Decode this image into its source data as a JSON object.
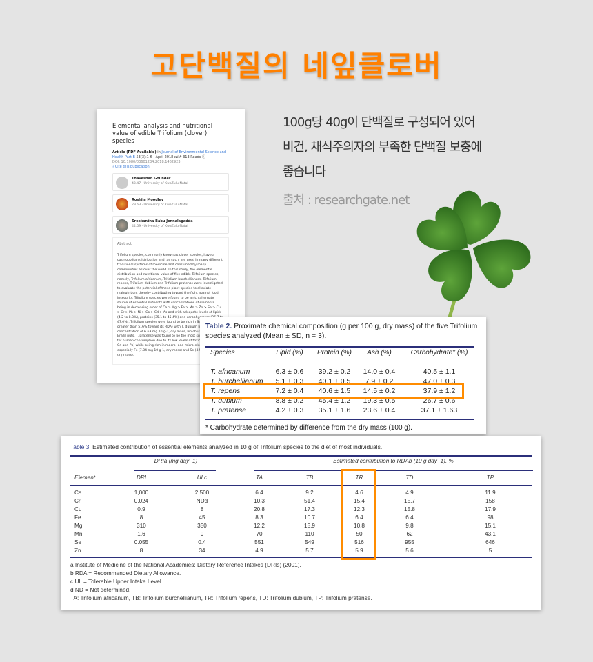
{
  "title": "고단백질의 네잎클로버",
  "description": [
    "100g당 40g이 단백질로 구성되어 있어",
    "비건, 채식주의자의 부족한 단백질 보충에",
    "좋습니다"
  ],
  "source": "출처 : researchgate.net",
  "colors": {
    "accent": "#ff8000",
    "highlight": "#ff8c00",
    "table_rule": "#2b2f7a",
    "background": "#e4e4e4"
  },
  "paper": {
    "title": "Elemental analysis and nutritional value of edible Trifolium (clover) species",
    "article_type": "Article (PDF Available)",
    "in": "in",
    "journal": "Journal of Environmental Science and Health Part B",
    "issue": "53(3):1-6 · April 2018",
    "with": "with",
    "reads": "313 Reads",
    "doi": "DOI: 10.1080/03601234.2018.1462923",
    "cite": "Cite this publication",
    "authors": [
      {
        "name": "Thaveshan Gounder",
        "affiliation": "43.47 · University of KwaZulu-Natal"
      },
      {
        "name": "Roshila Moodley",
        "affiliation": "29.63 · University of KwaZulu-Natal"
      },
      {
        "name": "Sreekantha Babu Jonnalagadda",
        "affiliation": "44.59 · University of KwaZulu-Natal"
      }
    ],
    "abstract_label": "Abstract",
    "abstract": "Trifolium species, commonly known as clover species, have a cosmopolitan distribution and, as such, are used in many different traditional systems of medicine and consumed by many communities all over the world. In this study, the elemental distribution and nutritional value of five edible Trifolium species, namely, Trifolium africanum, Trifolium burchellianum, Trifolium repens, Trifolium dubium and Trifolium pratense were investigated to evaluate the potential of these plant species to alleviate malnutrition, thereby contributing toward the fight against food insecurity. Trifolium species were found to be a rich alternate source of essential nutrients with concentrations of elements being in decreasing order of Ca > Mg > Fe > Mn > Zn > Se > Cu > Cr > Pb > Ni > Co > Cd > As and with adequate levels of lipids (4.2 to 8.8%), proteins (35.1 to 45.4%) and carbohydrates (26.7 to 47.0%). Trifolium species were found to be rich in Se (contributing greater than 516% toward its RDA) with T. dubium having a concentration of 6.63 mg 10 g-1, dry mass, which is higher than Brazil nuts. T. pratense was found to be the most suitable species for human consumption due to its low levels of toxic metals (As, Cd and Pb) while being rich in macro- and micro-elements, especially Fe (7.84 mg 10 g-1, dry mass) and Se (3.56 mg 10 g-1, dry mass)."
  },
  "table2": {
    "label": "Table 2.",
    "caption": "Proximate chemical composition (g per 100 g, dry mass) of the five Trifolium species analyzed (Mean ± SD, n = 3).",
    "columns": [
      "Species",
      "Lipid (%)",
      "Protein (%)",
      "Ash (%)",
      "Carbohydrate* (%)"
    ],
    "rows": [
      [
        "T. africanum",
        "6.3 ± 0.6",
        "39.2 ± 0.2",
        "14.0 ± 0.4",
        "40.5 ± 1.1"
      ],
      [
        "T. burchellianum",
        "5.1 ± 0.3",
        "40.1 ± 0.5",
        "7.9 ± 0.2",
        "47.0 ± 0.3"
      ],
      [
        "T. repens",
        "7.2 ± 0.4",
        "40.6 ± 1.5",
        "14.5 ± 0.2",
        "37.9 ± 1.2"
      ],
      [
        "T. dubium",
        "8.8 ± 0.2",
        "45.4 ± 1.2",
        "19.3 ± 0.5",
        "26.7 ± 0.6"
      ],
      [
        "T. pratense",
        "4.2 ± 0.3",
        "35.1 ± 1.6",
        "23.6 ± 0.4",
        "37.1 ± 1.63"
      ]
    ],
    "highlighted_row": "T. repens",
    "footnote": "* Carbohydrate determined by difference from the dry mass (100 g)."
  },
  "table3": {
    "label": "Table 3.",
    "caption": "Estimated contribution of essential elements analyzed in 10 g of Trifolium species to the diet of most individuals.",
    "group1": "DRIa (mg day−1)",
    "group2": "Estimated contribution to RDAb (10 g day−1), %",
    "columns": [
      "Element",
      "DRI",
      "ULc",
      "TA",
      "TB",
      "TR",
      "TD",
      "TP"
    ],
    "rows": [
      [
        "Ca",
        "1,000",
        "2,500",
        "6.4",
        "9.2",
        "4.6",
        "4.9",
        "11.9"
      ],
      [
        "Cr",
        "0.024",
        "NDd",
        "10.3",
        "51.4",
        "15.4",
        "15.7",
        "158"
      ],
      [
        "Cu",
        "0.9",
        "8",
        "20.8",
        "17.3",
        "12.3",
        "15.8",
        "17.9"
      ],
      [
        "Fe",
        "8",
        "45",
        "8.3",
        "10.7",
        "6.4",
        "6.4",
        "98"
      ],
      [
        "Mg",
        "310",
        "350",
        "12.2",
        "15.9",
        "10.8",
        "9.8",
        "15.1"
      ],
      [
        "Mn",
        "1.6",
        "9",
        "70",
        "110",
        "50",
        "62",
        "43.1"
      ],
      [
        "Se",
        "0.055",
        "0.4",
        "551",
        "549",
        "516",
        "955",
        "646"
      ],
      [
        "Zn",
        "8",
        "34",
        "4.9",
        "5.7",
        "5.9",
        "5.6",
        "5"
      ]
    ],
    "highlighted_column": "TR",
    "footnotes": [
      "a Institute of Medicine of the National Academies: Dietary Reference Intakes (DRIs) (2001).",
      "b RDA = Recommended Dietary Allowance.",
      "c UL = Tolerable Upper Intake Level.",
      "d ND = Not determined.",
      "TA: Trifolium africanum, TB: Trifolium burchellianum, TR: Trifolium repens, TD: Trifolium dubium, TP: Trifolium pratense."
    ]
  }
}
